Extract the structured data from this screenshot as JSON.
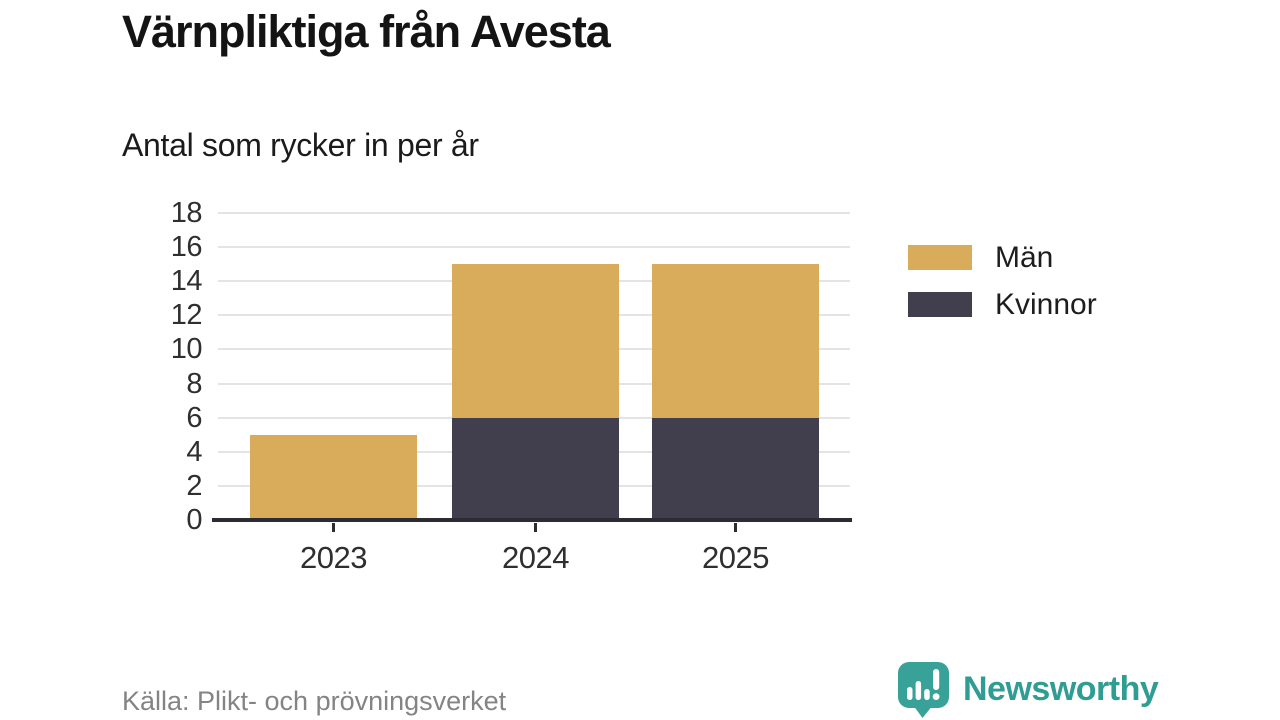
{
  "header": {
    "title": "Värnpliktiga från Avesta",
    "subtitle": "Antal som rycker in per år"
  },
  "chart_data": {
    "type": "bar",
    "stacked": true,
    "title": "Värnpliktiga från Avesta",
    "subtitle": "Antal som rycker in per år",
    "categories": [
      "2023",
      "2024",
      "2025"
    ],
    "series": [
      {
        "name": "Män",
        "color": "#d9ac5c",
        "values": [
          5,
          9,
          9
        ]
      },
      {
        "name": "Kvinnor",
        "color": "#413f4e",
        "values": [
          0,
          6,
          6
        ]
      }
    ],
    "stack_bottom_to_top": [
      "Kvinnor",
      "Män"
    ],
    "totals": [
      5,
      15,
      15
    ],
    "xlabel": "",
    "ylabel": "",
    "ylim": [
      0,
      18
    ],
    "yticks": [
      0,
      2,
      4,
      6,
      8,
      10,
      12,
      14,
      16,
      18
    ],
    "grid": true,
    "legend_position": "right-top"
  },
  "legend": {
    "items": [
      {
        "label": "Män",
        "color": "#d9ac5c"
      },
      {
        "label": "Kvinnor",
        "color": "#413f4e"
      }
    ]
  },
  "footer": {
    "source": "Källa: Plikt- och prövningsverket",
    "brand": "Newsworthy"
  },
  "colors": {
    "men": "#d9ac5c",
    "women": "#413f4e",
    "brand_teal": "#38a299",
    "gridline": "#e4e4e4",
    "axis": "#2d2c35",
    "background": "#ffffff"
  }
}
